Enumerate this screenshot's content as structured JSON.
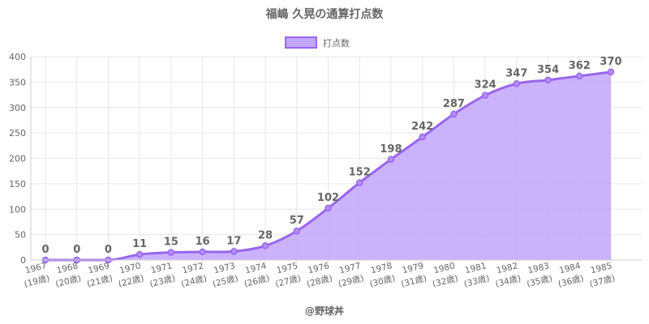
{
  "chart_data": {
    "type": "area",
    "title": "福嶋 久晃の通算打点数",
    "legend": {
      "position": "top",
      "entries": [
        "打点数"
      ]
    },
    "x": [
      "1967",
      "1968",
      "1969",
      "1970",
      "1971",
      "1972",
      "1973",
      "1974",
      "1975",
      "1976",
      "1977",
      "1978",
      "1979",
      "1980",
      "1981",
      "1982",
      "1983",
      "1984",
      "1985"
    ],
    "x_sublabels": [
      "(19歳)",
      "(20歳)",
      "(21歳)",
      "(22歳)",
      "(23歳)",
      "(24歳)",
      "(25歳)",
      "(26歳)",
      "(27歳)",
      "(28歳)",
      "(29歳)",
      "(30歳)",
      "(31歳)",
      "(32歳)",
      "(33歳)",
      "(34歳)",
      "(35歳)",
      "(36歳)",
      "(37歳)"
    ],
    "series": [
      {
        "name": "打点数",
        "values": [
          0,
          0,
          0,
          11,
          15,
          16,
          17,
          28,
          57,
          102,
          152,
          198,
          242,
          287,
          324,
          347,
          354,
          362,
          370
        ]
      }
    ],
    "ylim": [
      0,
      400
    ],
    "yticks": [
      0,
      50,
      100,
      150,
      200,
      250,
      300,
      350,
      400
    ],
    "grid": true,
    "data_labels": true,
    "colors": {
      "line": "#9966ee",
      "fill": "#c2a6fa",
      "grid": "#e6e6e6"
    }
  },
  "footer": {
    "credit": "@野球丼"
  }
}
